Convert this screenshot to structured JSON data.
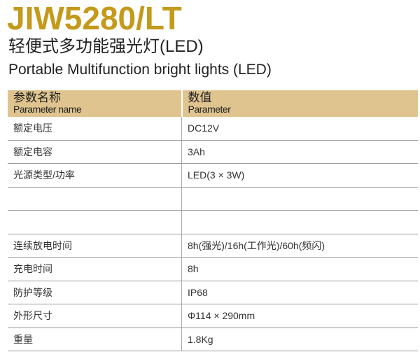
{
  "title": "JIW5280/LT",
  "subtitle_cn": "轻便式多功能强光灯(LED)",
  "subtitle_en": "Portable Multifunction bright lights (LED)",
  "table": {
    "headers": [
      {
        "cn": "参数名称",
        "en": "Parameter name"
      },
      {
        "cn": "数值",
        "en": "Parameter"
      }
    ],
    "rows": [
      [
        "额定电压",
        "DC12V"
      ],
      [
        "额定电容",
        "3Ah"
      ],
      [
        "光源类型/功率",
        "LED(3 × 3W)"
      ],
      [
        "",
        ""
      ],
      [
        "",
        ""
      ],
      [
        "连续放电时间",
        "8h(强光)/16h(工作光)/60h(频闪)"
      ],
      [
        "充电时间",
        "8h"
      ],
      [
        "防护等级",
        "IP68"
      ],
      [
        "外形尺寸",
        "Φ114 × 290mm"
      ],
      [
        "重量",
        "1.8Kg"
      ]
    ]
  },
  "colors": {
    "title": "#c49a1c",
    "header_bg": "#dfc48f"
  }
}
